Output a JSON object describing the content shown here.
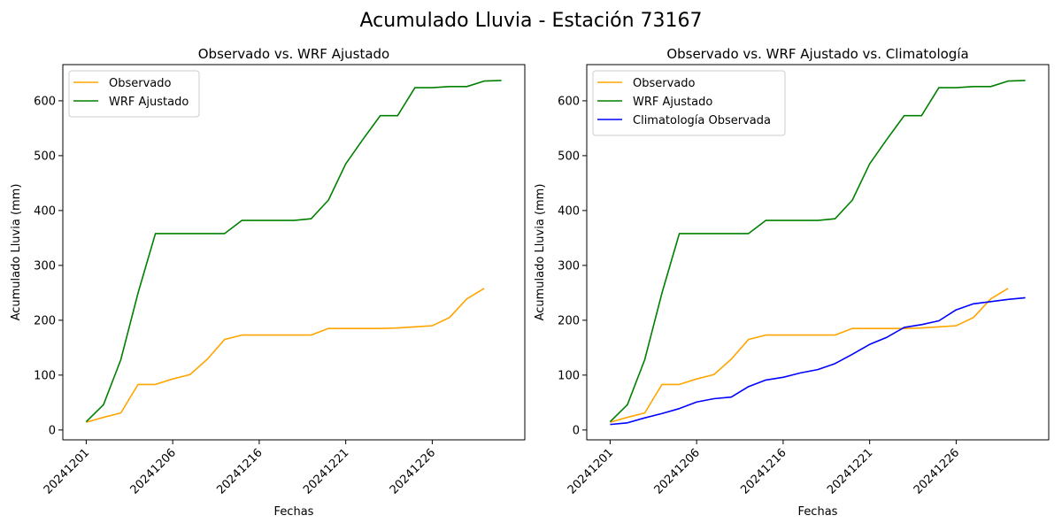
{
  "figure": {
    "title": "Acumulado Lluvia - Estación 73167"
  },
  "colors": {
    "observado": "#FFA500",
    "wrf": "#008000",
    "climatologia": "#0000FF"
  },
  "chart_data": [
    {
      "type": "line",
      "title": "Observado vs. WRF Ajustado",
      "xlabel": "Fechas",
      "ylabel": "Acumulado Lluvia (mm)",
      "x_ticks": [
        "20241201",
        "20241206",
        "20241216",
        "20241221",
        "20241226"
      ],
      "x_tick_positions": [
        0,
        5,
        10,
        15,
        20
      ],
      "xlim": [
        -1.35,
        25.35
      ],
      "ylim": [
        -18,
        666
      ],
      "y_ticks": [
        0,
        100,
        200,
        300,
        400,
        500,
        600
      ],
      "legend_position": "upper left",
      "series": [
        {
          "name": "Observado",
          "color_key": "observado",
          "values": [
            14,
            23,
            31,
            83,
            83,
            93,
            101,
            129,
            165,
            173,
            173,
            173,
            173,
            173,
            185,
            185,
            185,
            185,
            186,
            188,
            190,
            205,
            239,
            258
          ]
        },
        {
          "name": "WRF Ajustado",
          "color_key": "wrf",
          "values": [
            15,
            46,
            128,
            250,
            358,
            358,
            358,
            358,
            358,
            382,
            382,
            382,
            382,
            385,
            419,
            485,
            530,
            573,
            573,
            624,
            624,
            626,
            626,
            636,
            637
          ]
        }
      ]
    },
    {
      "type": "line",
      "title": "Observado vs. WRF Ajustado vs. Climatología",
      "xlabel": "Fechas",
      "ylabel": "Acumulado Lluvia (mm)",
      "x_ticks": [
        "20241201",
        "20241206",
        "20241216",
        "20241221",
        "20241226"
      ],
      "x_tick_positions": [
        0,
        5,
        10,
        15,
        20
      ],
      "xlim": [
        -1.35,
        25.35
      ],
      "ylim": [
        -18,
        666
      ],
      "y_ticks": [
        0,
        100,
        200,
        300,
        400,
        500,
        600
      ],
      "legend_position": "upper left",
      "series": [
        {
          "name": "Observado",
          "color_key": "observado",
          "values": [
            14,
            23,
            31,
            83,
            83,
            93,
            101,
            129,
            165,
            173,
            173,
            173,
            173,
            173,
            185,
            185,
            185,
            185,
            186,
            188,
            190,
            205,
            239,
            258
          ]
        },
        {
          "name": "WRF Ajustado",
          "color_key": "wrf",
          "values": [
            15,
            46,
            128,
            250,
            358,
            358,
            358,
            358,
            358,
            382,
            382,
            382,
            382,
            385,
            419,
            485,
            530,
            573,
            573,
            624,
            624,
            626,
            626,
            636,
            637
          ]
        },
        {
          "name": "Climatología Observada",
          "color_key": "climatologia",
          "values": [
            10,
            13,
            22,
            30,
            39,
            51,
            57,
            60,
            79,
            91,
            96,
            104,
            110,
            121,
            138,
            156,
            169,
            187,
            192,
            199,
            219,
            230,
            234,
            238,
            241
          ]
        }
      ]
    }
  ]
}
